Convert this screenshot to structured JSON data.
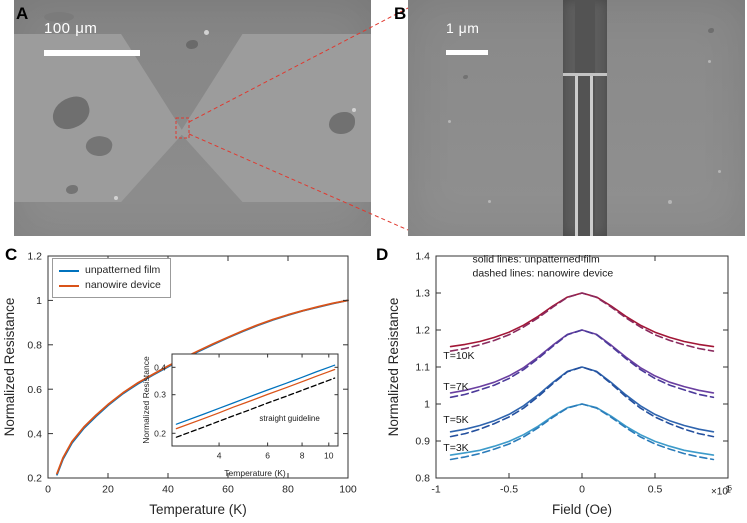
{
  "figure_labels": {
    "a": "A",
    "b": "B",
    "c": "C",
    "d": "D"
  },
  "panel_a": {
    "scale_bar": "100 μm"
  },
  "panel_b": {
    "scale_bar": "1 μm"
  },
  "colors": {
    "connector": "#e0392f",
    "axis": "#333333",
    "film_blue": "#0072bd",
    "nanowire_orange": "#d95319"
  },
  "chart_data": [
    {
      "panel": "C",
      "type": "line",
      "xlabel": "Temperature (K)",
      "ylabel": "Normalized Resistance",
      "xlim": [
        0,
        100
      ],
      "ylim": [
        0.2,
        1.2
      ],
      "xticks": [
        0,
        20,
        40,
        60,
        80,
        100
      ],
      "xticklabels": [
        "0",
        "20",
        "40",
        "60",
        "80",
        "100"
      ],
      "yticks": [
        0.2,
        0.4,
        0.6,
        0.8,
        1,
        1.2
      ],
      "yticklabels": [
        "0.2",
        "0.4",
        "0.6",
        "0.8",
        "1",
        "1.2"
      ],
      "legend_position": "top-left",
      "x": [
        3,
        5,
        8,
        12,
        16,
        20,
        25,
        30,
        35,
        40,
        45,
        50,
        55,
        60,
        65,
        70,
        75,
        80,
        85,
        90,
        95,
        100
      ],
      "series": [
        {
          "name": "unpatterned film",
          "color": "#0072bd",
          "style": "solid",
          "values": [
            0.215,
            0.285,
            0.358,
            0.425,
            0.478,
            0.527,
            0.58,
            0.625,
            0.664,
            0.701,
            0.736,
            0.769,
            0.801,
            0.832,
            0.861,
            0.888,
            0.912,
            0.934,
            0.953,
            0.97,
            0.986,
            1.0
          ]
        },
        {
          "name": "nanowire device",
          "color": "#d95319",
          "style": "solid",
          "values": [
            0.22,
            0.291,
            0.364,
            0.43,
            0.483,
            0.531,
            0.584,
            0.629,
            0.667,
            0.704,
            0.739,
            0.772,
            0.804,
            0.834,
            0.863,
            0.89,
            0.914,
            0.935,
            0.954,
            0.971,
            0.987,
            1.0
          ]
        }
      ]
    },
    {
      "panel": "C-inset",
      "type": "line",
      "xscale": "log",
      "yscale": "log",
      "xlabel": "Temperature (K)",
      "ylabel": "Normalized Resistance",
      "xlim": [
        2.7,
        10.8
      ],
      "ylim": [
        0.175,
        0.46
      ],
      "xticks": [
        4,
        6,
        8,
        10
      ],
      "xticklabels": [
        "4",
        "6",
        "8",
        "10"
      ],
      "yticks": [
        0.2,
        0.3,
        0.4
      ],
      "yticklabels": [
        "0.2",
        "0.3",
        "0.4"
      ],
      "x": [
        2.8,
        3.5,
        4,
        4.5,
        5,
        6,
        7,
        8,
        9,
        10,
        10.5
      ],
      "series": [
        {
          "name": "unpatterned film",
          "color": "#0072bd",
          "style": "solid",
          "values": [
            0.22,
            0.244,
            0.26,
            0.275,
            0.289,
            0.315,
            0.338,
            0.36,
            0.381,
            0.4,
            0.409
          ]
        },
        {
          "name": "nanowire device",
          "color": "#d95319",
          "style": "solid",
          "values": [
            0.21,
            0.233,
            0.248,
            0.263,
            0.276,
            0.301,
            0.323,
            0.344,
            0.364,
            0.382,
            0.391
          ]
        },
        {
          "name": "straight guideline",
          "color": "#000000",
          "style": "dashed",
          "values": [
            0.192,
            0.213,
            0.227,
            0.24,
            0.252,
            0.275,
            0.295,
            0.314,
            0.332,
            0.349,
            0.357
          ]
        }
      ],
      "annotations": [
        {
          "text": "straight guideline",
          "x": 5.6,
          "y": 0.228
        }
      ]
    },
    {
      "panel": "D",
      "type": "line",
      "xlabel": "Field (Oe)",
      "ylabel": "Normalized Resistance",
      "x_exponent_label": "×10^5",
      "xlim": [
        -1,
        1
      ],
      "ylim": [
        0.8,
        1.4
      ],
      "xticks": [
        -1,
        -0.5,
        0,
        0.5,
        1
      ],
      "xticklabels": [
        "-1",
        "-0.5",
        "0",
        "0.5",
        "1"
      ],
      "yticks": [
        0.8,
        0.9,
        1,
        1.1,
        1.2,
        1.3,
        1.4
      ],
      "yticklabels": [
        "0.8",
        "0.9",
        "1",
        "1.1",
        "1.2",
        "1.3",
        "1.4"
      ],
      "x": [
        -0.9,
        -0.8,
        -0.7,
        -0.6,
        -0.5,
        -0.4,
        -0.3,
        -0.2,
        -0.1,
        0,
        0.1,
        0.2,
        0.3,
        0.4,
        0.5,
        0.6,
        0.7,
        0.8,
        0.9
      ],
      "series": [
        {
          "name": "T=10K unpatterned film",
          "color": "#a21636",
          "style": "solid",
          "values": [
            1.155,
            1.161,
            1.169,
            1.18,
            1.194,
            1.213,
            1.237,
            1.265,
            1.289,
            1.3,
            1.289,
            1.265,
            1.237,
            1.213,
            1.194,
            1.18,
            1.169,
            1.161,
            1.155
          ]
        },
        {
          "name": "T=10K nanowire device",
          "color": "#8a2a5e",
          "style": "dashed",
          "values": [
            1.143,
            1.15,
            1.16,
            1.172,
            1.187,
            1.208,
            1.233,
            1.262,
            1.288,
            1.3,
            1.288,
            1.262,
            1.233,
            1.208,
            1.187,
            1.172,
            1.16,
            1.15,
            1.143
          ]
        },
        {
          "name": "T=7K unpatterned film",
          "color": "#6a3fa0",
          "style": "solid",
          "values": [
            1.03,
            1.037,
            1.047,
            1.059,
            1.076,
            1.098,
            1.127,
            1.159,
            1.188,
            1.2,
            1.188,
            1.159,
            1.127,
            1.098,
            1.076,
            1.059,
            1.047,
            1.037,
            1.03
          ]
        },
        {
          "name": "T=7K nanowire device",
          "color": "#4c3a9a",
          "style": "dashed",
          "values": [
            1.018,
            1.026,
            1.038,
            1.051,
            1.069,
            1.093,
            1.123,
            1.156,
            1.187,
            1.2,
            1.187,
            1.156,
            1.123,
            1.093,
            1.069,
            1.051,
            1.038,
            1.026,
            1.018
          ]
        },
        {
          "name": "T=5K unpatterned film",
          "color": "#2e64ae",
          "style": "solid",
          "values": [
            0.925,
            0.932,
            0.942,
            0.955,
            0.972,
            0.995,
            1.025,
            1.058,
            1.088,
            1.1,
            1.088,
            1.058,
            1.025,
            0.995,
            0.972,
            0.955,
            0.942,
            0.932,
            0.925
          ]
        },
        {
          "name": "T=5K nanowire device",
          "color": "#24509e",
          "style": "dashed",
          "values": [
            0.912,
            0.92,
            0.932,
            0.947,
            0.965,
            0.989,
            1.02,
            1.055,
            1.087,
            1.1,
            1.087,
            1.055,
            1.02,
            0.989,
            0.965,
            0.947,
            0.932,
            0.92,
            0.912
          ]
        },
        {
          "name": "T=3K unpatterned film",
          "color": "#3d9bca",
          "style": "solid",
          "values": [
            0.862,
            0.868,
            0.875,
            0.886,
            0.899,
            0.917,
            0.94,
            0.967,
            0.99,
            1.0,
            0.99,
            0.967,
            0.94,
            0.917,
            0.899,
            0.886,
            0.875,
            0.868,
            0.862
          ]
        },
        {
          "name": "T=3K nanowire device",
          "color": "#2b7cba",
          "style": "dashed",
          "values": [
            0.85,
            0.857,
            0.866,
            0.878,
            0.892,
            0.911,
            0.936,
            0.964,
            0.989,
            1.0,
            0.989,
            0.964,
            0.936,
            0.911,
            0.892,
            0.878,
            0.866,
            0.857,
            0.85
          ]
        }
      ],
      "annotations": [
        {
          "text": "solid lines: unpatterned film",
          "x": -0.75,
          "y": 1.383
        },
        {
          "text": "dashed lines: nanowire device",
          "x": -0.75,
          "y": 1.345
        },
        {
          "text": "T=10K",
          "x": -0.95,
          "y": 1.122
        },
        {
          "text": "T=7K",
          "x": -0.95,
          "y": 1.038
        },
        {
          "text": "T=5K",
          "x": -0.95,
          "y": 0.948
        },
        {
          "text": "T=3K",
          "x": -0.95,
          "y": 0.873
        }
      ]
    }
  ]
}
